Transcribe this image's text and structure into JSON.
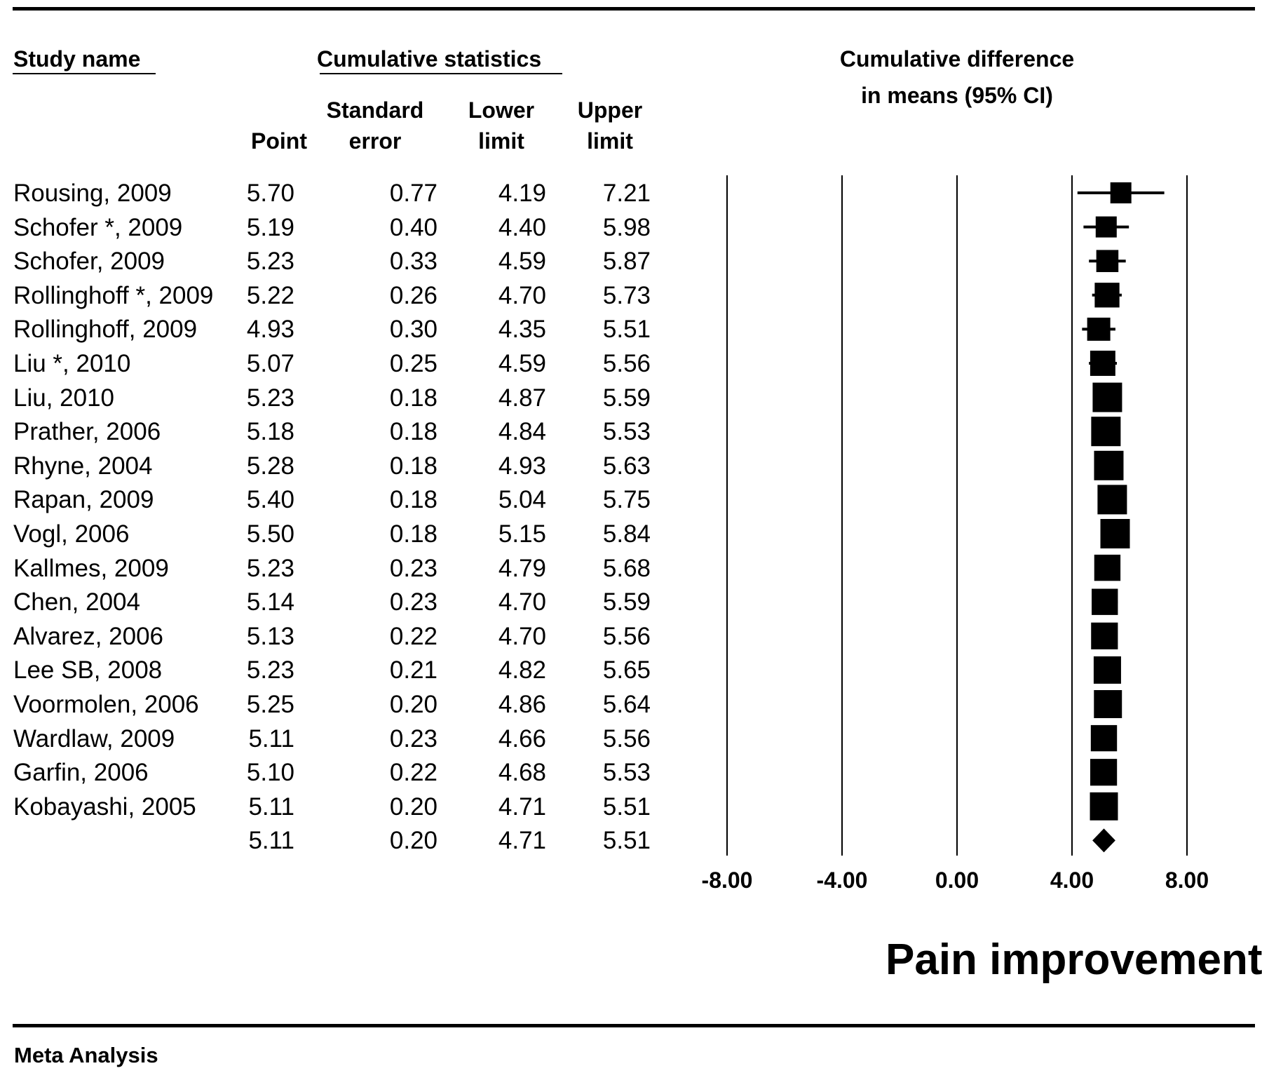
{
  "headers": {
    "study_name": "Study name",
    "cumulative_statistics": "Cumulative statistics",
    "cumulative_difference_line1": "Cumulative difference",
    "cumulative_difference_line2": "in means (95% CI)",
    "point": "Point",
    "standard_error_line1": "Standard",
    "standard_error_line2": "error",
    "lower_limit_line1": "Lower",
    "lower_limit_line2": "limit",
    "upper_limit_line1": "Upper",
    "upper_limit_line2": "limit"
  },
  "rows": [
    {
      "study": "Rousing, 2009",
      "point": "5.70",
      "se": "0.77",
      "lower": "4.19",
      "upper": "7.21"
    },
    {
      "study": "Schofer *, 2009",
      "point": "5.19",
      "se": "0.40",
      "lower": "4.40",
      "upper": "5.98"
    },
    {
      "study": "Schofer, 2009",
      "point": "5.23",
      "se": "0.33",
      "lower": "4.59",
      "upper": "5.87"
    },
    {
      "study": "Rollinghoff *, 2009",
      "point": "5.22",
      "se": "0.26",
      "lower": "4.70",
      "upper": "5.73"
    },
    {
      "study": "Rollinghoff, 2009",
      "point": "4.93",
      "se": "0.30",
      "lower": "4.35",
      "upper": "5.51"
    },
    {
      "study": "Liu *, 2010",
      "point": "5.07",
      "se": "0.25",
      "lower": "4.59",
      "upper": "5.56"
    },
    {
      "study": "Liu, 2010",
      "point": "5.23",
      "se": "0.18",
      "lower": "4.87",
      "upper": "5.59"
    },
    {
      "study": "Prather, 2006",
      "point": "5.18",
      "se": "0.18",
      "lower": "4.84",
      "upper": "5.53"
    },
    {
      "study": "Rhyne, 2004",
      "point": "5.28",
      "se": "0.18",
      "lower": "4.93",
      "upper": "5.63"
    },
    {
      "study": "Rapan, 2009",
      "point": "5.40",
      "se": "0.18",
      "lower": "5.04",
      "upper": "5.75"
    },
    {
      "study": "Vogl, 2006",
      "point": "5.50",
      "se": "0.18",
      "lower": "5.15",
      "upper": "5.84"
    },
    {
      "study": "Kallmes, 2009",
      "point": "5.23",
      "se": "0.23",
      "lower": "4.79",
      "upper": "5.68"
    },
    {
      "study": "Chen, 2004",
      "point": "5.14",
      "se": "0.23",
      "lower": "4.70",
      "upper": "5.59"
    },
    {
      "study": "Alvarez, 2006",
      "point": "5.13",
      "se": "0.22",
      "lower": "4.70",
      "upper": "5.56"
    },
    {
      "study": "Lee SB, 2008",
      "point": "5.23",
      "se": "0.21",
      "lower": "4.82",
      "upper": "5.65"
    },
    {
      "study": "Voormolen, 2006",
      "point": "5.25",
      "se": "0.20",
      "lower": "4.86",
      "upper": "5.64"
    },
    {
      "study": "Wardlaw, 2009",
      "point": "5.11",
      "se": "0.23",
      "lower": "4.66",
      "upper": "5.56"
    },
    {
      "study": "Garfin, 2006",
      "point": "5.10",
      "se": "0.22",
      "lower": "4.68",
      "upper": "5.53"
    },
    {
      "study": "Kobayashi, 2005",
      "point": "5.11",
      "se": "0.20",
      "lower": "4.71",
      "upper": "5.51"
    }
  ],
  "summary": {
    "study": "",
    "point": "5.11",
    "se": "0.20",
    "lower": "4.71",
    "upper": "5.51"
  },
  "plot_title": "Pain improvement",
  "footer": "Meta Analysis",
  "chart_data": {
    "type": "forest",
    "x_ticks": [
      "-8.00",
      "-4.00",
      "0.00",
      "4.00",
      "8.00"
    ],
    "xlim": [
      -8,
      8
    ],
    "gridlines_at": [
      -8,
      -4,
      0,
      4,
      8
    ],
    "studies": [
      {
        "name": "Rousing, 2009",
        "point": 5.7,
        "lower": 4.19,
        "upper": 7.21
      },
      {
        "name": "Schofer *, 2009",
        "point": 5.19,
        "lower": 4.4,
        "upper": 5.98
      },
      {
        "name": "Schofer, 2009",
        "point": 5.23,
        "lower": 4.59,
        "upper": 5.87
      },
      {
        "name": "Rollinghoff *, 2009",
        "point": 5.22,
        "lower": 4.7,
        "upper": 5.73
      },
      {
        "name": "Rollinghoff, 2009",
        "point": 4.93,
        "lower": 4.35,
        "upper": 5.51
      },
      {
        "name": "Liu *, 2010",
        "point": 5.07,
        "lower": 4.59,
        "upper": 5.56
      },
      {
        "name": "Liu, 2010",
        "point": 5.23,
        "lower": 4.87,
        "upper": 5.59
      },
      {
        "name": "Prather, 2006",
        "point": 5.18,
        "lower": 4.84,
        "upper": 5.53
      },
      {
        "name": "Rhyne, 2004",
        "point": 5.28,
        "lower": 4.93,
        "upper": 5.63
      },
      {
        "name": "Rapan, 2009",
        "point": 5.4,
        "lower": 5.04,
        "upper": 5.75
      },
      {
        "name": "Vogl, 2006",
        "point": 5.5,
        "lower": 5.15,
        "upper": 5.84
      },
      {
        "name": "Kallmes, 2009",
        "point": 5.23,
        "lower": 4.79,
        "upper": 5.68
      },
      {
        "name": "Chen, 2004",
        "point": 5.14,
        "lower": 4.7,
        "upper": 5.59
      },
      {
        "name": "Alvarez, 2006",
        "point": 5.13,
        "lower": 4.7,
        "upper": 5.56
      },
      {
        "name": "Lee SB, 2008",
        "point": 5.23,
        "lower": 4.82,
        "upper": 5.65
      },
      {
        "name": "Voormolen, 2006",
        "point": 5.25,
        "lower": 4.86,
        "upper": 5.64
      },
      {
        "name": "Wardlaw, 2009",
        "point": 5.11,
        "lower": 4.66,
        "upper": 5.56
      },
      {
        "name": "Garfin, 2006",
        "point": 5.1,
        "lower": 4.68,
        "upper": 5.53
      },
      {
        "name": "Kobayashi, 2005",
        "point": 5.11,
        "lower": 4.71,
        "upper": 5.51
      }
    ],
    "summary": {
      "point": 5.11,
      "lower": 4.71,
      "upper": 5.51
    },
    "marker_color": "#000000"
  }
}
